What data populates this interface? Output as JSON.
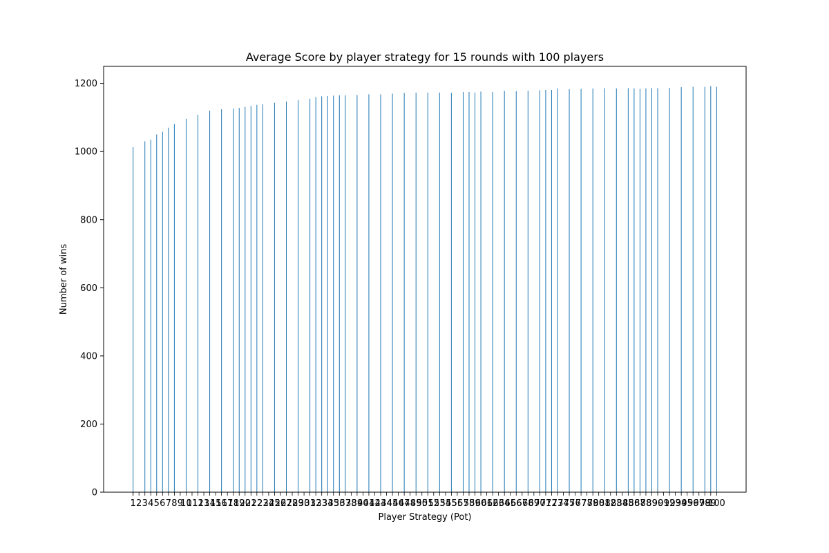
{
  "chart_data": {
    "type": "bar",
    "title": "Average Score by player strategy for 15 rounds with 100 players",
    "xlabel": "Player Strategy (Pot)",
    "ylabel": "Number of wins",
    "ylim": [
      0,
      1250
    ],
    "yticks": [
      0,
      200,
      400,
      600,
      800,
      1000,
      1200
    ],
    "grid": false,
    "bar_color": "#1f77b4",
    "categories": [
      "1",
      "3",
      "4",
      "5",
      "6",
      "7",
      "8",
      "10",
      "12",
      "14",
      "16",
      "18",
      "19",
      "20",
      "21",
      "22",
      "23",
      "25",
      "27",
      "29",
      "31",
      "32",
      "33",
      "34",
      "35",
      "36",
      "37",
      "39",
      "41",
      "43",
      "45",
      "47",
      "49",
      "51",
      "53",
      "55",
      "57",
      "58",
      "59",
      "60",
      "62",
      "64",
      "66",
      "68",
      "70",
      "71",
      "72",
      "73",
      "75",
      "77",
      "79",
      "81",
      "83",
      "85",
      "86",
      "87",
      "88",
      "89",
      "90",
      "92",
      "94",
      "96",
      "98",
      "99",
      "100"
    ],
    "values": [
      1013,
      1030,
      1035,
      1050,
      1058,
      1070,
      1081,
      1096,
      1108,
      1120,
      1124,
      1126,
      1128,
      1131,
      1134,
      1137,
      1139,
      1143,
      1147,
      1151,
      1155,
      1160,
      1162,
      1163,
      1164,
      1165,
      1165,
      1166,
      1168,
      1168,
      1170,
      1172,
      1173,
      1173,
      1173,
      1172,
      1175,
      1175,
      1173,
      1176,
      1175,
      1178,
      1177,
      1179,
      1180,
      1181,
      1181,
      1185,
      1183,
      1184,
      1185,
      1186,
      1185,
      1186,
      1185,
      1184,
      1185,
      1186,
      1186,
      1187,
      1189,
      1190,
      1190,
      1192,
      1190
    ]
  },
  "extra_labels": [
    "1",
    "2",
    "9",
    "11",
    "13",
    "15",
    "17",
    "24",
    "26",
    "28",
    "30",
    "38",
    "40",
    "42",
    "44",
    "46",
    "48",
    "50",
    "52",
    "54",
    "56",
    "61",
    "63",
    "65",
    "67",
    "69",
    "74",
    "76",
    "78",
    "80",
    "82",
    "84",
    "91",
    "93",
    "95",
    "97"
  ]
}
